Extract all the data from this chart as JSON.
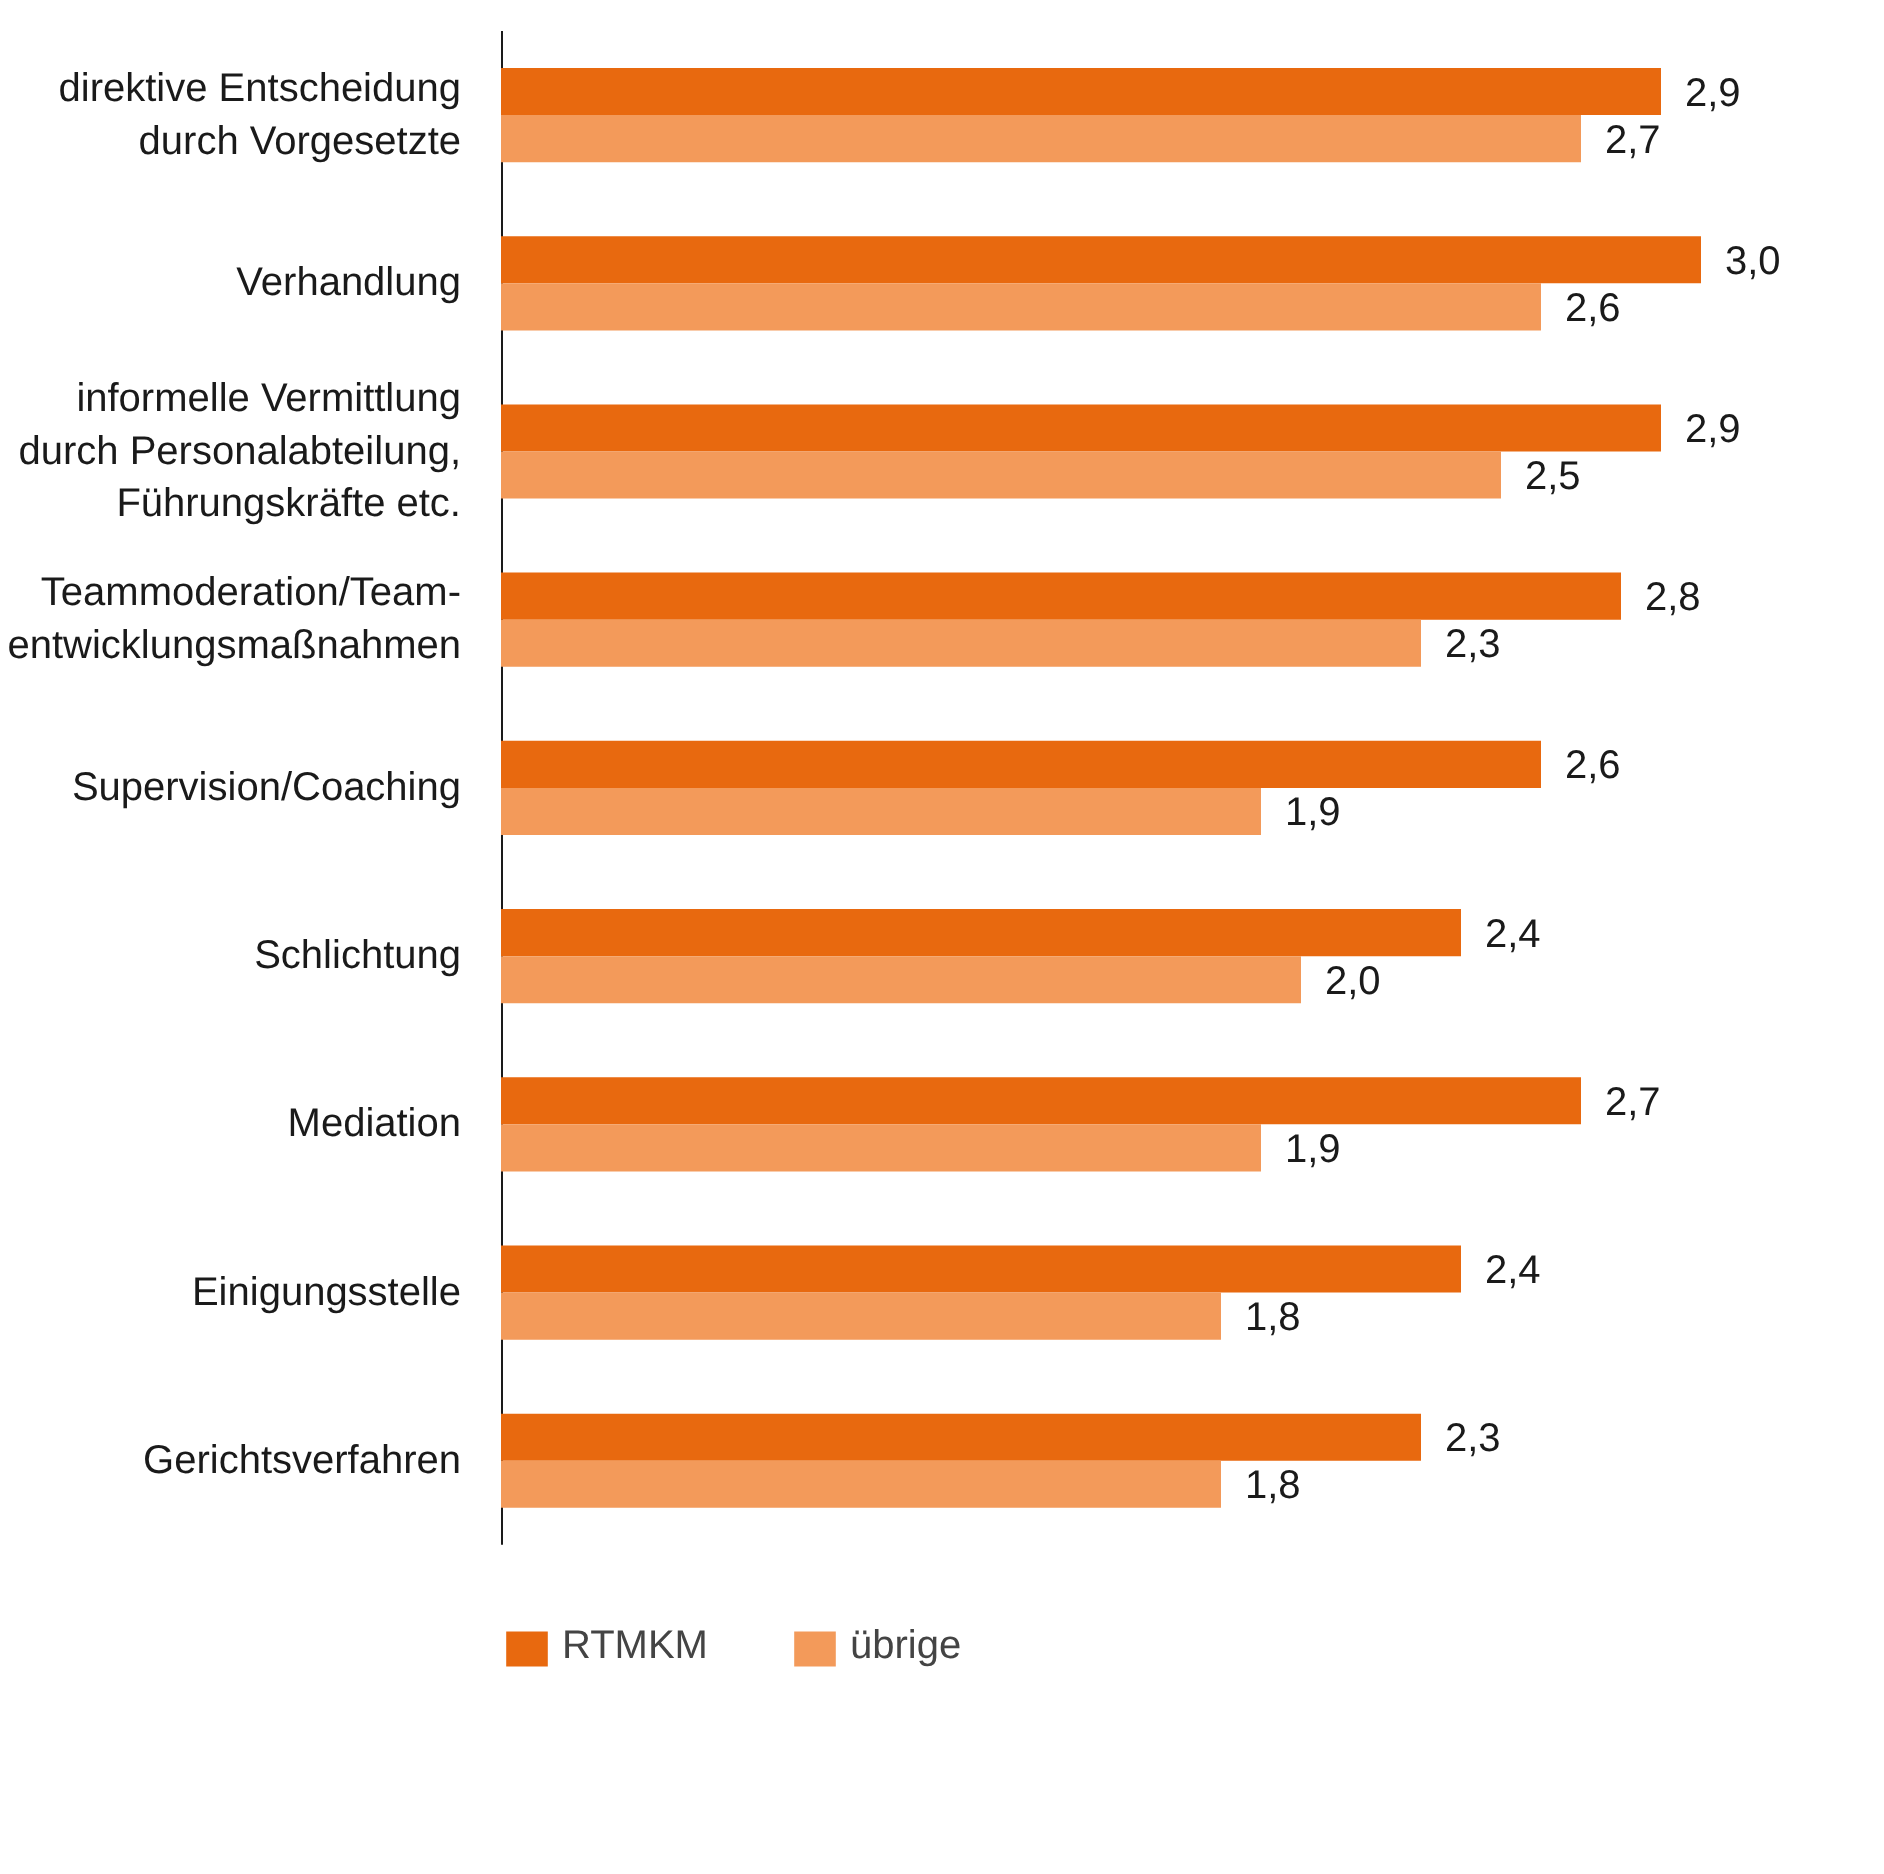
{
  "chart_data": {
    "type": "bar",
    "orientation": "horizontal",
    "categories": [
      "direktive Entscheidung\ndurch Vorgesetzte",
      "Verhandlung",
      "informelle Vermittlung\ndurch Personalabteilung,\nFührungskräfte etc.",
      "Teammoderation/Team-\nentwicklungsmaßnahmen",
      "Supervision/Coaching",
      "Schlichtung",
      "Mediation",
      "Einigungsstelle",
      "Gerichtsverfahren"
    ],
    "series": [
      {
        "name": "RTMKM",
        "color": "#e8690f",
        "values": [
          2.9,
          3.0,
          2.9,
          2.8,
          2.6,
          2.4,
          2.7,
          2.4,
          2.3
        ],
        "value_labels": [
          "2,9",
          "3,0",
          "2,9",
          "2,8",
          "2,6",
          "2,4",
          "2,7",
          "2,4",
          "2,3"
        ]
      },
      {
        "name": "übrige",
        "color": "#f39a5a",
        "values": [
          2.7,
          2.6,
          2.5,
          2.3,
          1.9,
          2.0,
          1.9,
          1.8,
          1.8
        ],
        "value_labels": [
          "2,7",
          "2,6",
          "2,5",
          "2,3",
          "1,9",
          "2,0",
          "1,9",
          "1,8",
          "1,8"
        ]
      }
    ],
    "legend": "bottom",
    "grid": false
  }
}
